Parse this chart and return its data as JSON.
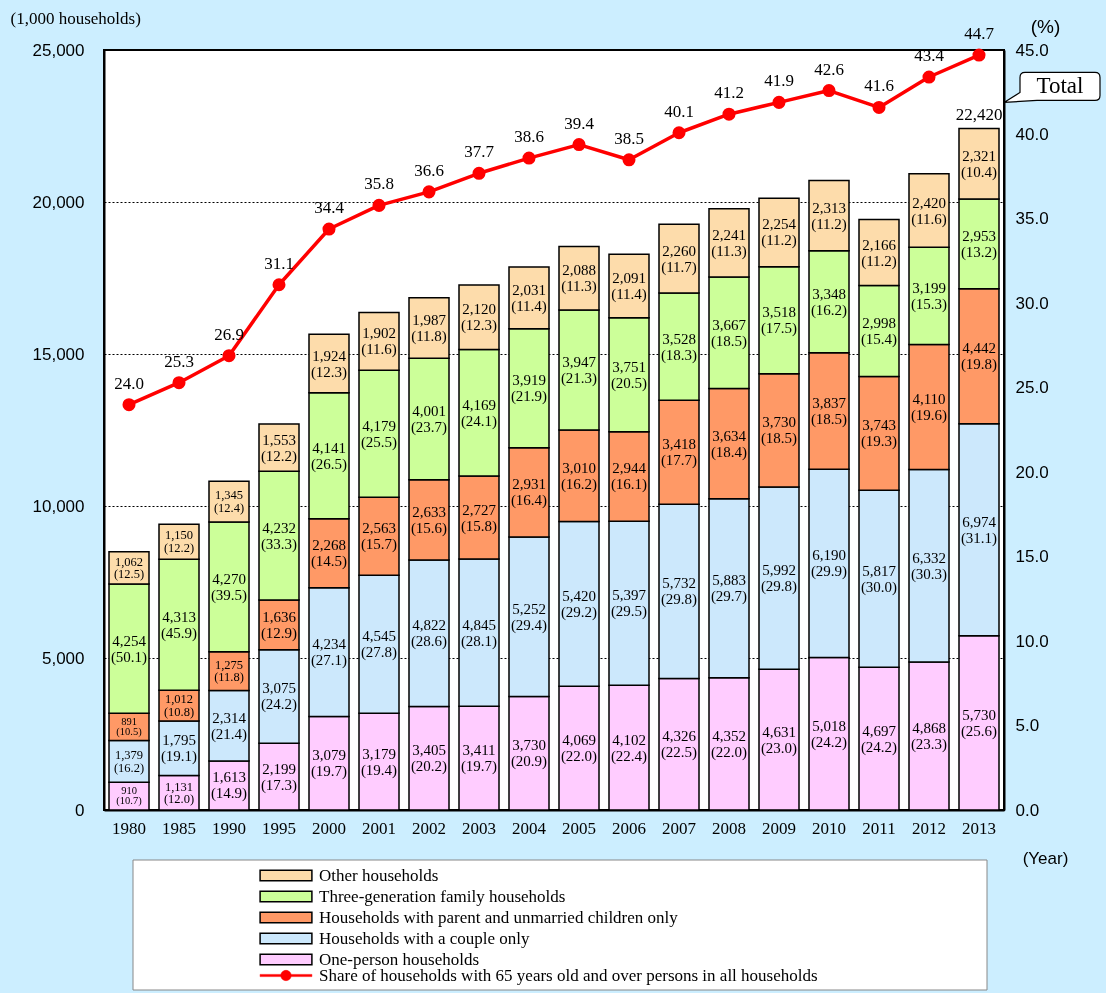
{
  "chart_data": {
    "type": "bar",
    "stacked": true,
    "ylabel": "(1,000 households)",
    "y2label": "(%)",
    "xlabel": "(Year)",
    "categories": [
      "1980",
      "1985",
      "1990",
      "1995",
      "2000",
      "2001",
      "2002",
      "2003",
      "2004",
      "2005",
      "2006",
      "2007",
      "2008",
      "2009",
      "2010",
      "2011",
      "2012",
      "2013"
    ],
    "series": [
      {
        "name": "One-person households",
        "color": "#ffccff",
        "values": [
          910,
          1131,
          1613,
          2199,
          3079,
          3179,
          3405,
          3411,
          3730,
          4069,
          4102,
          4326,
          4352,
          4631,
          5018,
          4697,
          4868,
          5730
        ],
        "value_labels": [
          "910\n(10.7)",
          "1,131\n(12.0)",
          "1,613\n(14.9)",
          "2,199\n(17.3)",
          "3,079\n(19.7)",
          "3,179\n(19.4)",
          "3,405\n(20.2)",
          "3,411\n(19.7)",
          "3,730\n(20.9)",
          "4,069\n(22.0)",
          "4,102\n(22.4)",
          "4,326\n(22.5)",
          "4,352\n(22.0)",
          "4,631\n(23.0)",
          "5,018\n(24.2)",
          "4,697\n(24.2)",
          "4,868\n(23.3)",
          "5,730\n(25.6)"
        ]
      },
      {
        "name": "Households with a couple only",
        "color": "#cce8fc",
        "values": [
          1379,
          1795,
          2314,
          3075,
          4234,
          4545,
          4822,
          4845,
          5252,
          5420,
          5397,
          5732,
          5883,
          5992,
          6190,
          5817,
          6332,
          6974
        ],
        "value_labels": [
          "1,379\n(16.2)",
          "1,795\n(19.1)",
          "2,314\n(21.4)",
          "3,075\n(24.2)",
          "4,234\n(27.1)",
          "4,545\n(27.8)",
          "4,822\n(28.6)",
          "4,845\n(28.1)",
          "5,252\n(29.4)",
          "5,420\n(29.2)",
          "5,397\n(29.5)",
          "5,732\n(29.8)",
          "5,883\n(29.7)",
          "5,992\n(29.8)",
          "6,190\n(29.9)",
          "5,817\n(30.0)",
          "6,332\n(30.3)",
          "6,974\n(31.1)"
        ]
      },
      {
        "name": "Households with parent and unmarried children only",
        "color": "#ff9966",
        "values": [
          891,
          1012,
          1275,
          1636,
          2268,
          2563,
          2633,
          2727,
          2931,
          3010,
          2944,
          3418,
          3634,
          3730,
          3837,
          3743,
          4110,
          4442
        ],
        "value_labels": [
          "891\n(10.5)",
          "1,012\n(10.8)",
          "1,275\n(11.8)",
          "1,636\n(12.9)",
          "2,268\n(14.5)",
          "2,563\n(15.7)",
          "2,633\n(15.6)",
          "2,727\n(15.8)",
          "2,931\n(16.4)",
          "3,010\n(16.2)",
          "2,944\n(16.1)",
          "3,418\n(17.7)",
          "3,634\n(18.4)",
          "3,730\n(18.5)",
          "3,837\n(18.5)",
          "3,743\n(19.3)",
          "4,110\n(19.6)",
          "4,442\n(19.8)"
        ]
      },
      {
        "name": "Three-generation family households",
        "color": "#ccff99",
        "values": [
          4254,
          4313,
          4270,
          4232,
          4141,
          4179,
          4001,
          4169,
          3919,
          3947,
          3751,
          3528,
          3667,
          3518,
          3348,
          2998,
          3199,
          2953
        ],
        "value_labels": [
          "4,254\n(50.1)",
          "4,313\n(45.9)",
          "4,270\n(39.5)",
          "4,232\n(33.3)",
          "4,141\n(26.5)",
          "4,179\n(25.5)",
          "4,001\n(23.7)",
          "4,169\n(24.1)",
          "3,919\n(21.9)",
          "3,947\n(21.3)",
          "3,751\n(20.5)",
          "3,528\n(18.3)",
          "3,667\n(18.5)",
          "3,518\n(17.5)",
          "3,348\n(16.2)",
          "2,998\n(15.4)",
          "3,199\n(15.3)",
          "2,953\n(13.2)"
        ]
      },
      {
        "name": "Other households",
        "color": "#fddcab",
        "values": [
          1062,
          1150,
          1345,
          1553,
          1924,
          1902,
          1987,
          2120,
          2031,
          2088,
          2091,
          2260,
          2241,
          2254,
          2313,
          2166,
          2420,
          2321
        ],
        "value_labels": [
          "1,062\n(12.5)",
          "1,150\n(12.2)",
          "1,345\n(12.4)",
          "1,553\n(12.2)",
          "1,924\n(12.3)",
          "1,902\n(11.6)",
          "1,987\n(11.8)",
          "2,120\n(12.3)",
          "2,031\n(11.4)",
          "2,088\n(11.3)",
          "2,091\n(11.4)",
          "2,260\n(11.7)",
          "2,241\n(11.3)",
          "2,254\n(11.2)",
          "2,313\n(11.2)",
          "2,166\n(11.2)",
          "2,420\n(11.6)",
          "2,321\n(10.4)"
        ]
      },
      {
        "name": "Share of households with 65 years old and over persons in all households",
        "type": "line",
        "axis": "y2",
        "color": "#ff0000",
        "values": [
          24.0,
          25.3,
          26.9,
          31.1,
          34.4,
          35.8,
          36.6,
          37.7,
          38.6,
          39.4,
          38.5,
          40.1,
          41.2,
          41.9,
          42.6,
          41.6,
          43.4,
          44.7
        ],
        "value_labels": [
          "24.0",
          "25.3",
          "26.9",
          "31.1",
          "34.4",
          "35.8",
          "36.6",
          "37.7",
          "38.6",
          "39.4",
          "38.5",
          "40.1",
          "41.2",
          "41.9",
          "42.6",
          "41.6",
          "43.4",
          "44.7"
        ]
      }
    ],
    "totals": [
      null,
      null,
      null,
      null,
      null,
      null,
      null,
      null,
      null,
      null,
      null,
      null,
      null,
      null,
      null,
      null,
      null,
      "22,420"
    ],
    "annotations": [
      {
        "text": "Total",
        "x": "2013",
        "y": 22420
      }
    ],
    "ylim": [
      0,
      25000
    ],
    "yticks": [
      0,
      {
        "value": 5000,
        "label": "5,000"
      },
      {
        "value": 10000,
        "label": "10,000"
      },
      {
        "value": 15000,
        "label": "15,000"
      },
      {
        "value": 20000,
        "label": "20,000"
      },
      {
        "value": 25000,
        "label": "25,000"
      }
    ],
    "y2lim": [
      0,
      45
    ],
    "y2ticks": [
      {
        "value": 0,
        "label": "0.0"
      },
      {
        "value": 5,
        "label": "5.0"
      },
      {
        "value": 10,
        "label": "10.0"
      },
      {
        "value": 15,
        "label": "15.0"
      },
      {
        "value": 20,
        "label": "20.0"
      },
      {
        "value": 25,
        "label": "25.0"
      },
      {
        "value": 30,
        "label": "30.0"
      },
      {
        "value": 35,
        "label": "35.0"
      },
      {
        "value": 40,
        "label": "40.0"
      },
      {
        "value": 45,
        "label": "45.0"
      }
    ],
    "grid": "y",
    "legend": "bottom",
    "marker": "circle",
    "line_style": "solid"
  }
}
